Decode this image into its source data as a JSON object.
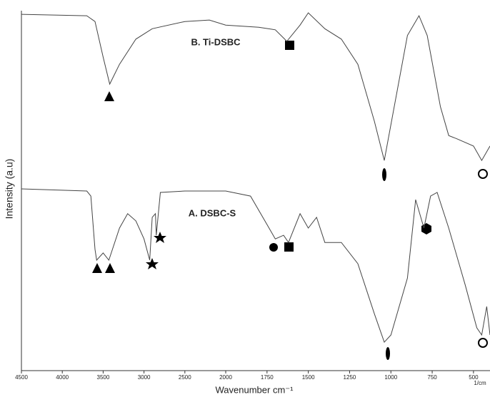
{
  "chart_data": {
    "type": "line",
    "xlabel": "Wavenumber cm⁻¹",
    "ylabel": "Intensity (a.u)",
    "x_unit": "1/cm",
    "xlim": [
      4500,
      400
    ],
    "xticks": [
      4500,
      4000,
      3500,
      3000,
      2500,
      2000,
      1750,
      1500,
      1250,
      1000,
      750,
      500
    ],
    "ylim": [
      0,
      100
    ],
    "series": [
      {
        "name": "B. Ti-DSBC",
        "color": "#444444",
        "x": [
          4500,
          3700,
          3600,
          3500,
          3420,
          3300,
          3100,
          2900,
          2500,
          2200,
          2000,
          1800,
          1700,
          1630,
          1550,
          1500,
          1400,
          1300,
          1200,
          1100,
          1040,
          980,
          900,
          830,
          780,
          700,
          650,
          600,
          500,
          450,
          400
        ],
        "values": [
          99,
          98.6,
          97,
          87.1,
          79.6,
          85.1,
          92.1,
          95,
          97,
          97.4,
          96,
          95.4,
          94.7,
          91.5,
          96,
          99.4,
          95,
          92.1,
          85.1,
          69.3,
          58.4,
          73.3,
          93.1,
          98.6,
          93.1,
          73.3,
          65.3,
          64.4,
          62.4,
          58.4,
          62.4
        ]
      },
      {
        "name": "A. DSBC-S",
        "color": "#444444",
        "x": [
          4500,
          3700,
          3650,
          3600,
          3580,
          3500,
          3430,
          3300,
          3200,
          3100,
          3000,
          2930,
          2900,
          2860,
          2850,
          2800,
          2500,
          2000,
          1850,
          1750,
          1700,
          1650,
          1620,
          1550,
          1500,
          1450,
          1400,
          1300,
          1200,
          1100,
          1040,
          1000,
          900,
          850,
          800,
          760,
          720,
          650,
          550,
          480,
          450,
          420,
          400
        ],
        "values": [
          50.5,
          49.9,
          48.5,
          33.7,
          30.7,
          32.7,
          30.7,
          39.6,
          43.6,
          41.6,
          36.6,
          30.7,
          42.6,
          43.6,
          37.6,
          49.5,
          49.9,
          49.9,
          48.5,
          40.6,
          36.6,
          37.6,
          35.6,
          43.6,
          39.6,
          42.6,
          35.6,
          35.6,
          29.7,
          15.8,
          7.9,
          9.9,
          25.7,
          47.5,
          39.6,
          48.5,
          49.5,
          39.6,
          23.8,
          11.9,
          9.9,
          17.8,
          9.9
        ]
      }
    ]
  }
}
